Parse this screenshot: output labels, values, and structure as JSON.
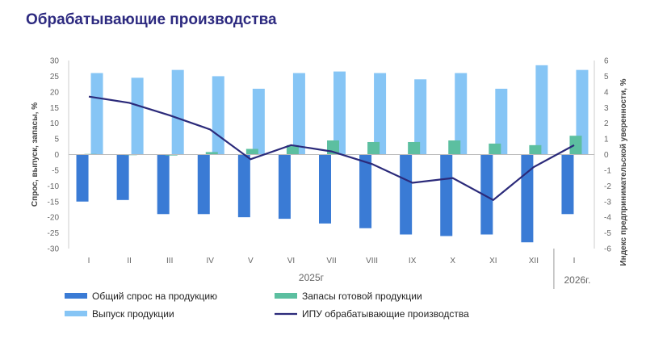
{
  "title": "Обрабатывающие производства",
  "chart_data": {
    "type": "bar",
    "categories": [
      "I",
      "II",
      "III",
      "IV",
      "V",
      "VI",
      "VII",
      "VIII",
      "IX",
      "X",
      "XI",
      "XII",
      "I"
    ],
    "year_labels": [
      "2025г",
      "2026г."
    ],
    "series": [
      {
        "name": "Общий спрос на продукцию",
        "axis": "left",
        "color": "#3a7bd5",
        "values": [
          -15,
          -14.5,
          -19,
          -19,
          -20,
          -20.5,
          -22,
          -23.5,
          -25.5,
          -26,
          -25.5,
          -28,
          -19
        ]
      },
      {
        "name": "Выпуск продукции",
        "axis": "left",
        "color": "#86c5f5",
        "values": [
          26,
          24.5,
          27,
          25,
          21,
          26,
          26.5,
          26,
          24,
          26,
          21,
          28.5,
          27
        ]
      },
      {
        "name": "Запасы готовой продукции",
        "axis": "left",
        "color": "#5cbfa0",
        "values": [
          0.2,
          -0.2,
          -0.3,
          0.8,
          1.8,
          3,
          4.5,
          4,
          4,
          4.5,
          3.5,
          3,
          6
        ]
      },
      {
        "name": "ИПУ обрабатывающие производства",
        "axis": "right",
        "type": "line",
        "color": "#2b2a7a",
        "values": [
          3.7,
          3.3,
          2.5,
          1.6,
          -0.3,
          0.6,
          0.2,
          -0.6,
          -1.8,
          -1.5,
          -2.9,
          -0.8,
          0.6
        ]
      }
    ],
    "ylim_left": [
      -30,
      30
    ],
    "yticks_left": [
      30,
      25,
      20,
      15,
      10,
      5,
      0,
      -5,
      -10,
      -15,
      -20,
      -25,
      -30
    ],
    "ylim_right": [
      -6,
      6
    ],
    "yticks_right": [
      6,
      5,
      4,
      3,
      2,
      1,
      0,
      -1,
      -2,
      -3,
      -4,
      -5,
      -6
    ],
    "ylabel_left": "Спрос, выпуск, запасы, %",
    "ylabel_right": "Индекс предпринимательской уверенности, %",
    "legend": [
      "Общий спрос на продукцию",
      "Запасы готовой продукции",
      "Выпуск продукции",
      "ИПУ обрабатывающие производства"
    ]
  }
}
